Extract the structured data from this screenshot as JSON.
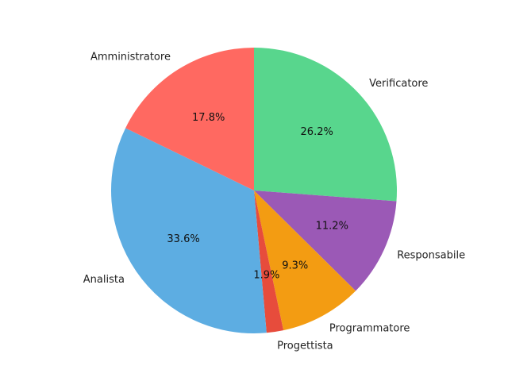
{
  "chart_data": {
    "type": "pie",
    "start_angle_deg": 90,
    "direction": "clockwise",
    "slices": [
      {
        "label": "Verificatore",
        "value": 26.2,
        "pct_label": "26.2%",
        "color": "#58d68d"
      },
      {
        "label": "Responsabile",
        "value": 11.2,
        "pct_label": "11.2%",
        "color": "#9b59b6"
      },
      {
        "label": "Programmatore",
        "value": 9.3,
        "pct_label": "9.3%",
        "color": "#f39c12"
      },
      {
        "label": "Progettista",
        "value": 1.9,
        "pct_label": "1.9%",
        "color": "#e74c3c"
      },
      {
        "label": "Analista",
        "value": 33.6,
        "pct_label": "33.6%",
        "color": "#5dade2"
      },
      {
        "label": "Amministratore",
        "value": 17.8,
        "pct_label": "17.8%",
        "color": "#ff6961"
      }
    ]
  }
}
